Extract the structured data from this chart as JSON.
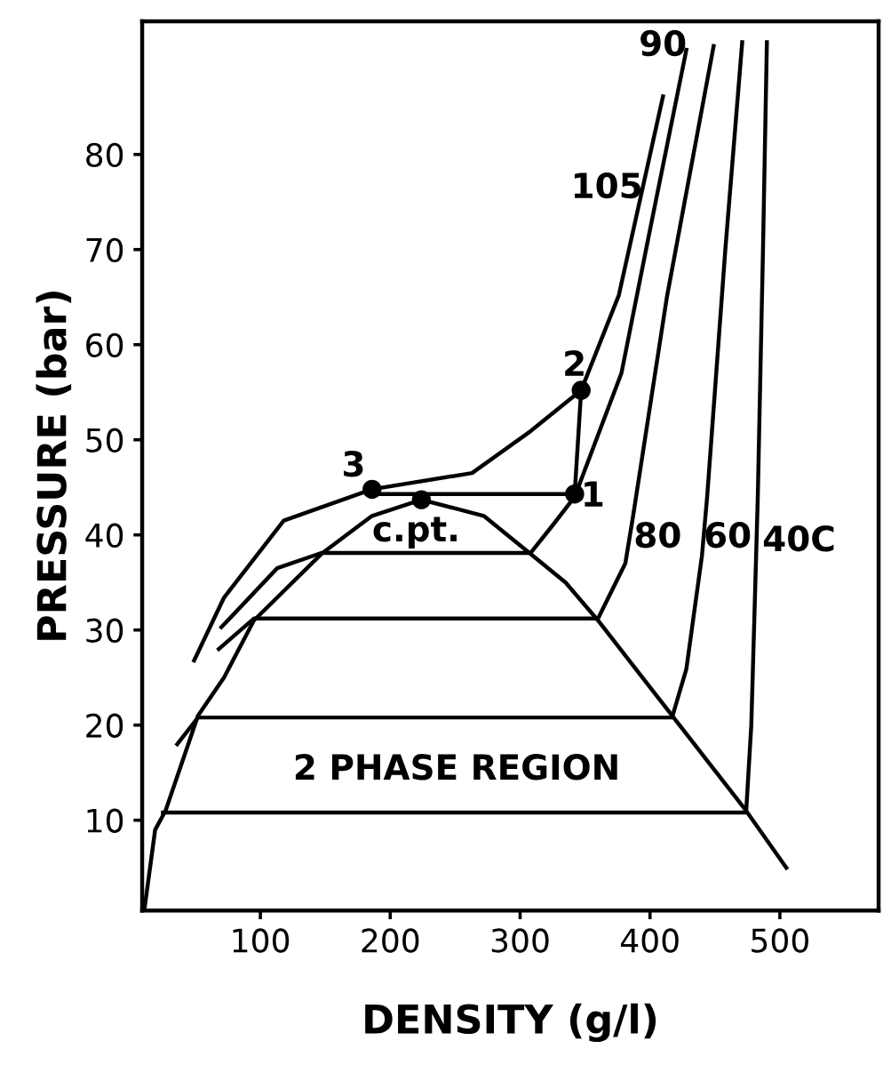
{
  "chart_data": {
    "type": "line",
    "xlabel": "DENSITY (g/l)",
    "ylabel": "PRESSURE (bar)",
    "xlim": [
      9,
      576
    ],
    "ylim": [
      0.5,
      94
    ],
    "xticks": [
      100,
      200,
      300,
      400,
      500
    ],
    "yticks": [
      10,
      20,
      30,
      40,
      50,
      60,
      70,
      80
    ],
    "grid": false,
    "legend": false,
    "marker": "none",
    "line_style": "solid",
    "series": [
      {
        "color": "#000000",
        "x": [
          11,
          19,
          27,
          52,
          72,
          95,
          147,
          186,
          224,
          272,
          308,
          335,
          360,
          417,
          474,
          505
        ],
        "values": [
          0.9,
          9,
          11,
          21,
          25,
          31,
          38,
          42,
          43.7,
          42,
          38,
          35,
          31,
          21,
          11,
          5
        ]
      },
      {
        "color": "#000000",
        "x": [
          25,
          474,
          478,
          483,
          487,
          490
        ],
        "values": [
          10.8,
          10.8,
          20,
          44,
          70,
          91.8
        ]
      },
      {
        "color": "#000000",
        "x": [
          36,
          52,
          417,
          428,
          440,
          444,
          458,
          471
        ],
        "values": [
          18,
          20.8,
          20.8,
          25.9,
          37.8,
          44,
          70,
          91.8
        ]
      },
      {
        "color": "#000000",
        "x": [
          68,
          95,
          360,
          381,
          387,
          413,
          449
        ],
        "values": [
          28,
          31.2,
          31.2,
          37,
          42,
          65,
          91.4
        ]
      },
      {
        "color": "#000000",
        "x": [
          70,
          113,
          147,
          308,
          325,
          342,
          378,
          399,
          428
        ],
        "values": [
          30.3,
          36.5,
          38.1,
          38.1,
          41,
          44,
          57,
          71.4,
          91
        ]
      },
      {
        "color": "#000000",
        "x": [
          49,
          72,
          118,
          186,
          263,
          308,
          347,
          376,
          410
        ],
        "values": [
          26.8,
          33.4,
          41.5,
          44.8,
          46.5,
          50.9,
          55.2,
          65.2,
          86.1
        ]
      },
      {
        "color": "#000000",
        "x": [
          186,
          342,
          347
        ],
        "values": [
          44.3,
          44.3,
          55.2
        ]
      },
      {
        "type": "scatter",
        "marker": "circle",
        "color": "#000000",
        "x": [
          342,
          347,
          186,
          224
        ],
        "values": [
          44.3,
          55.2,
          44.8,
          43.7
        ]
      }
    ],
    "annotations": [
      "90",
      "105",
      "80",
      "60",
      "40C",
      "2 PHASE REGION",
      "1",
      "2",
      "3",
      "c.pt."
    ]
  }
}
